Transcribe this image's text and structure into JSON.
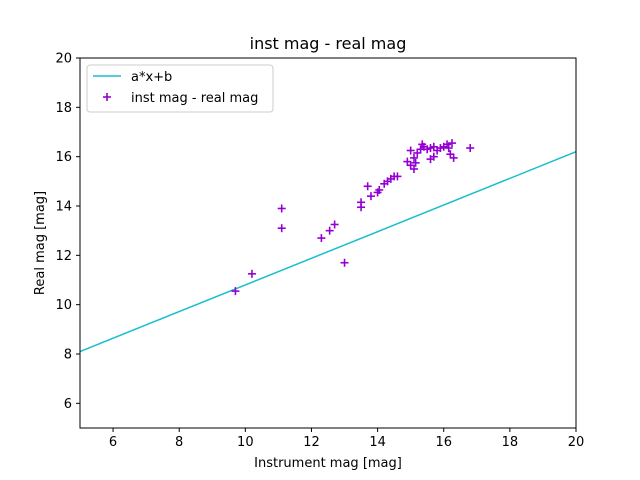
{
  "chart_data": {
    "type": "scatter",
    "title": "inst mag - real mag",
    "xlabel": "Instrument mag [mag]",
    "ylabel": "Real mag [mag]",
    "xlim": [
      5,
      20
    ],
    "ylim": [
      5,
      20
    ],
    "xticks": [
      6,
      8,
      10,
      12,
      14,
      16,
      18,
      20
    ],
    "yticks": [
      6,
      8,
      10,
      12,
      14,
      16,
      18,
      20
    ],
    "grid": false,
    "legend_position": "top-left",
    "series": [
      {
        "name": "a*x+b",
        "kind": "line",
        "color": "#17becf",
        "x": [
          5,
          20
        ],
        "y": [
          8.1,
          16.2
        ]
      },
      {
        "name": "inst mag - real mag",
        "kind": "scatter",
        "marker": "+",
        "color": "#9400d3",
        "points": [
          [
            9.7,
            10.55
          ],
          [
            10.2,
            11.25
          ],
          [
            11.1,
            13.9
          ],
          [
            11.1,
            13.1
          ],
          [
            12.3,
            12.7
          ],
          [
            12.55,
            13.0
          ],
          [
            12.7,
            13.25
          ],
          [
            13.0,
            11.7
          ],
          [
            13.5,
            13.95
          ],
          [
            13.5,
            14.15
          ],
          [
            13.7,
            14.8
          ],
          [
            13.8,
            14.4
          ],
          [
            14.0,
            14.55
          ],
          [
            14.05,
            14.65
          ],
          [
            14.2,
            14.9
          ],
          [
            14.3,
            15.0
          ],
          [
            14.4,
            15.1
          ],
          [
            14.5,
            15.2
          ],
          [
            14.6,
            15.2
          ],
          [
            14.9,
            15.8
          ],
          [
            15.0,
            15.65
          ],
          [
            15.0,
            16.25
          ],
          [
            15.1,
            15.5
          ],
          [
            15.1,
            15.95
          ],
          [
            15.15,
            15.75
          ],
          [
            15.2,
            16.15
          ],
          [
            15.3,
            16.3
          ],
          [
            15.35,
            16.5
          ],
          [
            15.4,
            16.4
          ],
          [
            15.5,
            16.3
          ],
          [
            15.6,
            15.9
          ],
          [
            15.6,
            16.35
          ],
          [
            15.7,
            16.4
          ],
          [
            15.7,
            16.0
          ],
          [
            15.8,
            16.25
          ],
          [
            15.9,
            16.35
          ],
          [
            16.0,
            16.4
          ],
          [
            16.1,
            16.5
          ],
          [
            16.15,
            16.35
          ],
          [
            16.2,
            16.1
          ],
          [
            16.25,
            16.55
          ],
          [
            16.3,
            15.95
          ],
          [
            16.8,
            16.35
          ]
        ]
      }
    ]
  }
}
